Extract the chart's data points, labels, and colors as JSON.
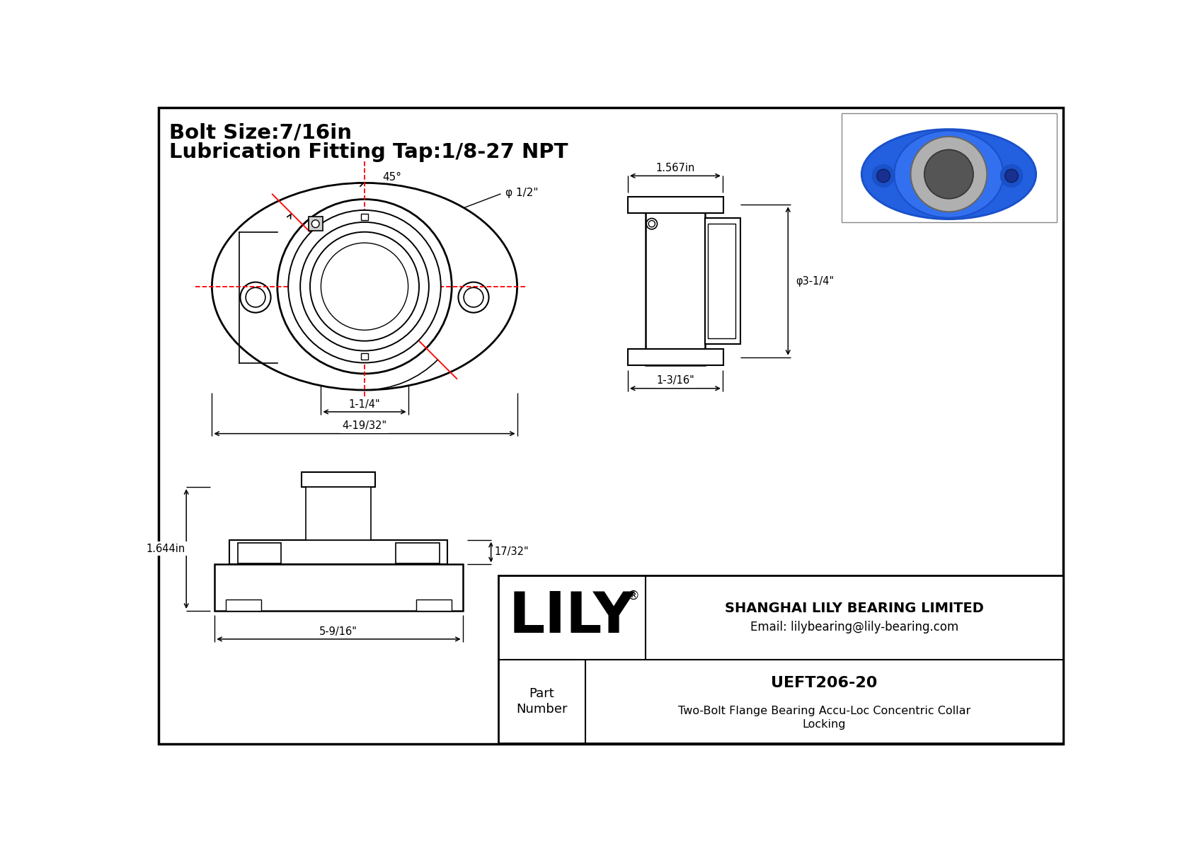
{
  "bg_color": "#ffffff",
  "title_line1": "Bolt Size:7/16in",
  "title_line2": "Lubrication Fitting Tap:1/8-27 NPT",
  "company": "SHANGHAI LILY BEARING LIMITED",
  "email": "Email: lilybearing@lily-bearing.com",
  "part_number": "UEFT206-20",
  "description_line1": "Two-Bolt Flange Bearing Accu-Loc Concentric Collar",
  "description_line2": "Locking",
  "lily_text": "LILY",
  "reg_symbol": "®",
  "dim_45": "45°",
  "dim_phi_half": "φ 1/2\"",
  "dim_1_567": "1.567in",
  "dim_phi_3_14": "φ3-1/4\"",
  "dim_1_316": "1-3/16\"",
  "dim_1_14": "1-1/4\"",
  "dim_4_1932": "4-19/32\"",
  "dim_1_644": "1.644in",
  "dim_17_32": "17/32\"",
  "dim_5_916": "5-9/16\""
}
